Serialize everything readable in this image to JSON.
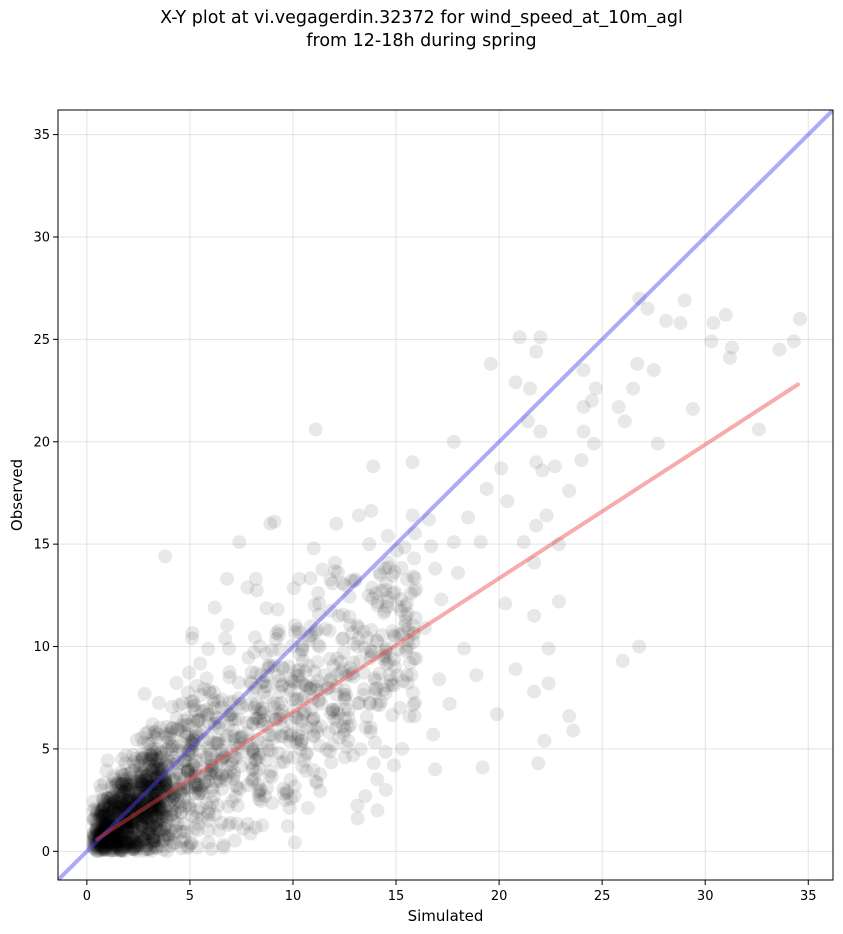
{
  "chart_data": {
    "type": "scatter",
    "title": [
      "X-Y plot at vi.vegagerdin.32372 for wind_speed_at_10m_agl",
      "from 12-18h during spring"
    ],
    "xlabel": "Simulated",
    "ylabel": "Observed",
    "xlim": [
      -1.4,
      36.2
    ],
    "ylim": [
      -1.4,
      36.2
    ],
    "xticks": [
      0,
      5,
      10,
      15,
      20,
      25,
      30,
      35
    ],
    "yticks": [
      0,
      5,
      10,
      15,
      20,
      25,
      30,
      35
    ],
    "grid": true,
    "point_color": "#000000",
    "point_opacity": 0.09,
    "lines": [
      {
        "kind": "identity",
        "color": "#4444ee",
        "x": [
          -1.4,
          36.2
        ],
        "y": [
          -1.4,
          36.2
        ]
      },
      {
        "kind": "regression",
        "color": "#ee4444",
        "x": [
          0.5,
          34.5
        ],
        "y": [
          0.6,
          22.8
        ]
      }
    ],
    "points": [
      [
        3.8,
        14.4
      ],
      [
        11.1,
        20.6
      ],
      [
        9.1,
        16.1
      ],
      [
        7.4,
        15.1
      ],
      [
        6.8,
        13.3
      ],
      [
        19.6,
        23.8
      ],
      [
        20.8,
        22.9
      ],
      [
        21.0,
        25.1
      ],
      [
        21.8,
        24.4
      ],
      [
        22.0,
        25.1
      ],
      [
        21.5,
        22.6
      ],
      [
        21.4,
        21.0
      ],
      [
        22.0,
        20.5
      ],
      [
        21.8,
        19.0
      ],
      [
        22.1,
        18.6
      ],
      [
        22.7,
        18.8
      ],
      [
        22.3,
        16.4
      ],
      [
        21.8,
        15.9
      ],
      [
        21.2,
        15.1
      ],
      [
        21.7,
        14.1
      ],
      [
        20.1,
        18.7
      ],
      [
        17.8,
        20.0
      ],
      [
        20.4,
        17.1
      ],
      [
        19.4,
        17.7
      ],
      [
        18.5,
        16.3
      ],
      [
        19.1,
        15.1
      ],
      [
        20.3,
        12.1
      ],
      [
        21.7,
        11.5
      ],
      [
        22.9,
        12.2
      ],
      [
        22.4,
        9.9
      ],
      [
        20.8,
        8.9
      ],
      [
        21.7,
        7.8
      ],
      [
        22.4,
        8.2
      ],
      [
        19.9,
        6.7
      ],
      [
        22.2,
        5.4
      ],
      [
        21.9,
        4.3
      ],
      [
        19.2,
        4.1
      ],
      [
        23.4,
        6.6
      ],
      [
        23.6,
        5.9
      ],
      [
        22.9,
        15.0
      ],
      [
        23.4,
        17.6
      ],
      [
        24.0,
        19.1
      ],
      [
        24.1,
        21.7
      ],
      [
        24.1,
        23.5
      ],
      [
        24.5,
        22.0
      ],
      [
        24.7,
        22.6
      ],
      [
        24.6,
        19.9
      ],
      [
        25.8,
        21.7
      ],
      [
        26.1,
        21.0
      ],
      [
        26.5,
        22.6
      ],
      [
        26.7,
        23.8
      ],
      [
        26.8,
        27.0
      ],
      [
        27.2,
        26.5
      ],
      [
        27.5,
        23.5
      ],
      [
        27.7,
        19.9
      ],
      [
        28.1,
        25.9
      ],
      [
        28.8,
        25.8
      ],
      [
        29.0,
        26.9
      ],
      [
        29.4,
        21.6
      ],
      [
        30.3,
        24.9
      ],
      [
        30.4,
        25.8
      ],
      [
        31.0,
        26.2
      ],
      [
        31.2,
        24.1
      ],
      [
        31.3,
        24.6
      ],
      [
        32.6,
        20.6
      ],
      [
        33.6,
        24.5
      ],
      [
        34.3,
        24.9
      ],
      [
        34.6,
        26.0
      ],
      [
        26.0,
        9.3
      ],
      [
        26.8,
        10.0
      ],
      [
        24.1,
        20.5
      ],
      [
        18.9,
        8.6
      ],
      [
        18.3,
        9.9
      ],
      [
        17.6,
        7.2
      ],
      [
        17.1,
        8.4
      ],
      [
        16.8,
        5.7
      ],
      [
        16.9,
        4.0
      ],
      [
        15.9,
        6.6
      ],
      [
        15.3,
        5.0
      ],
      [
        14.9,
        4.2
      ],
      [
        14.1,
        2.0
      ],
      [
        14.5,
        3.0
      ],
      [
        15.5,
        9.9
      ],
      [
        16.4,
        10.9
      ],
      [
        17.2,
        12.3
      ],
      [
        18.0,
        13.6
      ],
      [
        16.9,
        13.8
      ],
      [
        17.8,
        15.1
      ],
      [
        16.7,
        14.9
      ],
      [
        16.6,
        16.2
      ],
      [
        15.8,
        16.4
      ],
      [
        14.6,
        15.4
      ],
      [
        13.9,
        18.8
      ],
      [
        15.8,
        19.0
      ],
      [
        13.2,
        16.4
      ],
      [
        12.1,
        16.0
      ],
      [
        13.7,
        15.0
      ],
      [
        11.0,
        14.8
      ],
      [
        12.5,
        13.0
      ],
      [
        10.3,
        13.3
      ],
      [
        8.9,
        16.0
      ],
      [
        8.2,
        13.3
      ],
      [
        6.2,
        11.9
      ],
      [
        5.1,
        10.4
      ]
    ]
  }
}
